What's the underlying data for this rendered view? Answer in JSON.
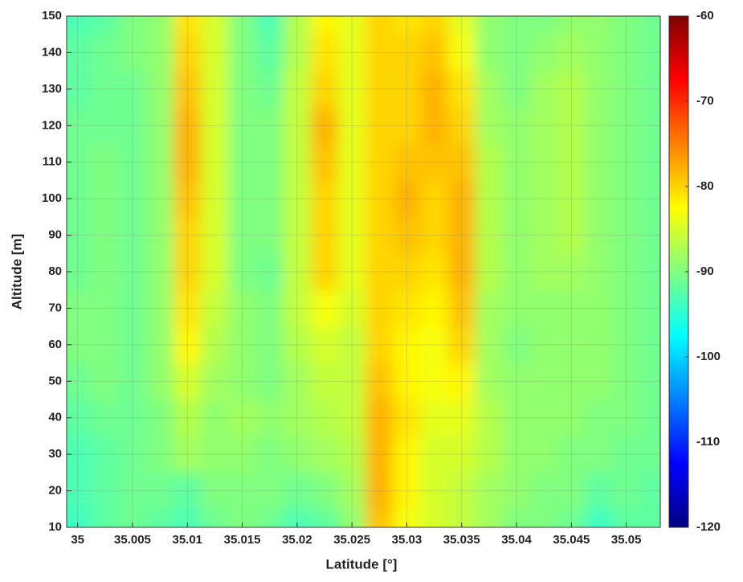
{
  "chart_data": {
    "type": "contour",
    "xlabel": "Latitude [°]",
    "ylabel": "Altitude [m]",
    "x": [
      35.0,
      35.0025,
      35.005,
      35.0075,
      35.01,
      35.0125,
      35.015,
      35.0175,
      35.02,
      35.0225,
      35.025,
      35.0275,
      35.03,
      35.0325,
      35.035,
      35.0375,
      35.04,
      35.0425,
      35.045,
      35.0475,
      35.05,
      35.0525
    ],
    "y": [
      10,
      20,
      30,
      40,
      50,
      60,
      70,
      80,
      90,
      100,
      110,
      120,
      130,
      140,
      150
    ],
    "z": [
      [
        -94,
        -92,
        -91,
        -92,
        -93,
        -91,
        -90,
        -91,
        -93,
        -92,
        -89,
        -79,
        -83,
        -85,
        -86,
        -88,
        -90,
        -90,
        -91,
        -94,
        -92,
        -92
      ],
      [
        -93,
        -92,
        -91,
        -91,
        -92,
        -90,
        -90,
        -90,
        -91,
        -90,
        -88,
        -78,
        -82,
        -85,
        -86,
        -88,
        -89,
        -90,
        -90,
        -92,
        -91,
        -92
      ],
      [
        -93,
        -92,
        -91,
        -90,
        -88,
        -89,
        -89,
        -90,
        -89,
        -88,
        -87,
        -78,
        -82,
        -85,
        -85,
        -87,
        -89,
        -89,
        -90,
        -90,
        -91,
        -91
      ],
      [
        -92,
        -91,
        -91,
        -90,
        -87,
        -89,
        -88,
        -89,
        -88,
        -87,
        -86,
        -78,
        -81,
        -84,
        -84,
        -87,
        -89,
        -89,
        -89,
        -90,
        -90,
        -91
      ],
      [
        -91,
        -90,
        -91,
        -89,
        -85,
        -88,
        -89,
        -90,
        -88,
        -86,
        -86,
        -79,
        -82,
        -83,
        -82,
        -88,
        -89,
        -89,
        -89,
        -89,
        -90,
        -91
      ],
      [
        -90,
        -90,
        -91,
        -89,
        -82,
        -87,
        -89,
        -90,
        -87,
        -85,
        -86,
        -80,
        -82,
        -83,
        -80,
        -88,
        -90,
        -89,
        -89,
        -89,
        -90,
        -91
      ],
      [
        -90,
        -90,
        -91,
        -89,
        -81,
        -86,
        -89,
        -90,
        -86,
        -83,
        -85,
        -80,
        -81,
        -82,
        -79,
        -88,
        -89,
        -89,
        -89,
        -89,
        -90,
        -91
      ],
      [
        -91,
        -90,
        -91,
        -89,
        -80,
        -85,
        -90,
        -91,
        -86,
        -80,
        -84,
        -80,
        -80,
        -81,
        -78,
        -87,
        -89,
        -88,
        -88,
        -89,
        -90,
        -91
      ],
      [
        -91,
        -90,
        -91,
        -89,
        -80,
        -85,
        -90,
        -90,
        -86,
        -80,
        -84,
        -80,
        -79,
        -80,
        -78,
        -87,
        -89,
        -88,
        -87,
        -89,
        -90,
        -91
      ],
      [
        -91,
        -90,
        -91,
        -89,
        -79,
        -85,
        -90,
        -90,
        -86,
        -80,
        -84,
        -80,
        -78,
        -80,
        -78,
        -87,
        -89,
        -88,
        -87,
        -89,
        -90,
        -91
      ],
      [
        -91,
        -90,
        -91,
        -89,
        -78,
        -85,
        -90,
        -90,
        -86,
        -79,
        -84,
        -80,
        -79,
        -79,
        -79,
        -87,
        -89,
        -88,
        -87,
        -89,
        -90,
        -91
      ],
      [
        -91,
        -91,
        -91,
        -89,
        -78,
        -85,
        -90,
        -90,
        -86,
        -78,
        -84,
        -80,
        -80,
        -78,
        -80,
        -88,
        -89,
        -88,
        -87,
        -89,
        -90,
        -91
      ],
      [
        -92,
        -91,
        -91,
        -89,
        -79,
        -85,
        -90,
        -91,
        -86,
        -80,
        -84,
        -80,
        -80,
        -78,
        -81,
        -88,
        -90,
        -88,
        -87,
        -89,
        -90,
        -91
      ],
      [
        -92,
        -91,
        -90,
        -89,
        -80,
        -85,
        -90,
        -92,
        -87,
        -81,
        -84,
        -80,
        -80,
        -79,
        -83,
        -89,
        -90,
        -89,
        -88,
        -89,
        -90,
        -91
      ],
      [
        -93,
        -92,
        -90,
        -89,
        -81,
        -85,
        -90,
        -93,
        -87,
        -82,
        -84,
        -80,
        -81,
        -80,
        -84,
        -89,
        -90,
        -90,
        -89,
        -89,
        -90,
        -91
      ]
    ],
    "xlim": [
      34.999,
      35.0531
    ],
    "ylim": [
      10,
      150
    ],
    "xticks": [
      35,
      35.005,
      35.01,
      35.015,
      35.02,
      35.025,
      35.03,
      35.035,
      35.04,
      35.045,
      35.05
    ],
    "yticks": [
      10,
      20,
      30,
      40,
      50,
      60,
      70,
      80,
      90,
      100,
      110,
      120,
      130,
      140,
      150
    ],
    "clim": [
      -120,
      -60
    ],
    "cticks": [
      -60,
      -70,
      -80,
      -90,
      -100,
      -110,
      -120
    ],
    "colormap": "jet",
    "grid": true
  }
}
